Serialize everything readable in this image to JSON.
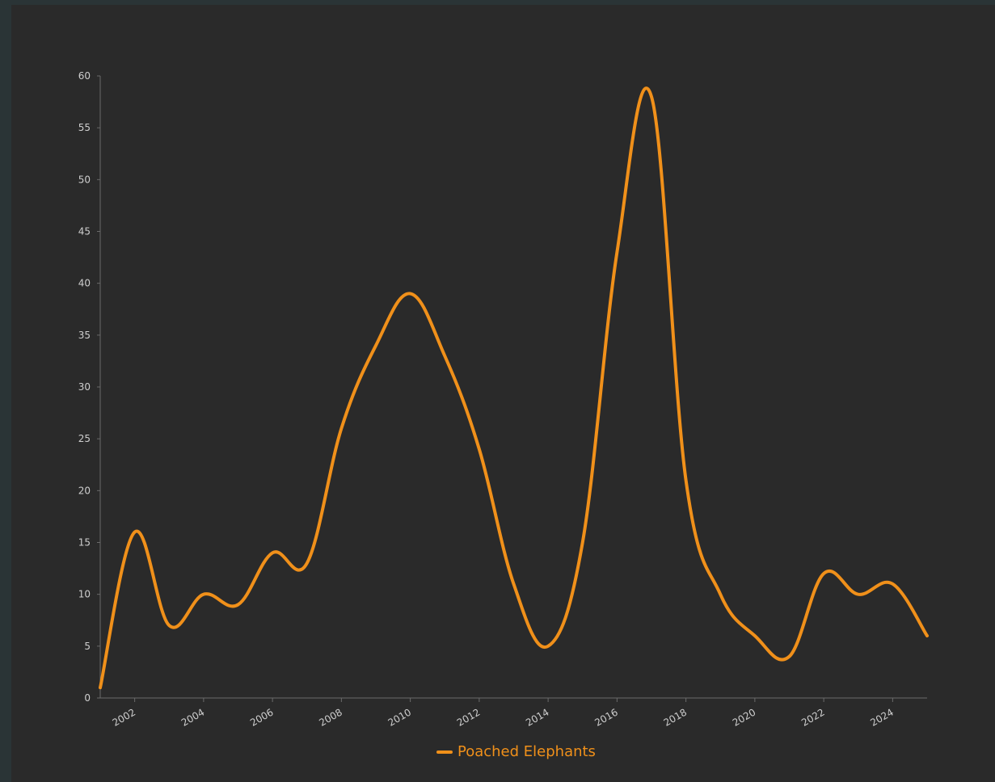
{
  "chart_data": {
    "type": "line",
    "title": "",
    "xlabel": "",
    "ylabel": "",
    "x": [
      2001,
      2002,
      2003,
      2004,
      2005,
      2006,
      2007,
      2008,
      2009,
      2010,
      2011,
      2012,
      2013,
      2014,
      2015,
      2016,
      2017,
      2018,
      2019,
      2020,
      2021,
      2022,
      2023,
      2024,
      2025
    ],
    "xlim": [
      2001,
      2025
    ],
    "x_ticks": [
      "2002",
      "2004",
      "2006",
      "2008",
      "2010",
      "2012",
      "2014",
      "2016",
      "2018",
      "2020",
      "2022",
      "2024"
    ],
    "ylim": [
      0,
      60
    ],
    "y_ticks": [
      "0",
      "5",
      "10",
      "15",
      "20",
      "25",
      "30",
      "35",
      "40",
      "45",
      "50",
      "55",
      "60"
    ],
    "series": [
      {
        "name": "Poached Elephants",
        "color": "#f0901a",
        "values": [
          1,
          16,
          7,
          10,
          9,
          14,
          13,
          26,
          34,
          39,
          33,
          24,
          11,
          5,
          15,
          43,
          58,
          21,
          10,
          6,
          4,
          12,
          10,
          11,
          6
        ]
      }
    ],
    "legend_position": "bottom-center",
    "grid": false
  }
}
